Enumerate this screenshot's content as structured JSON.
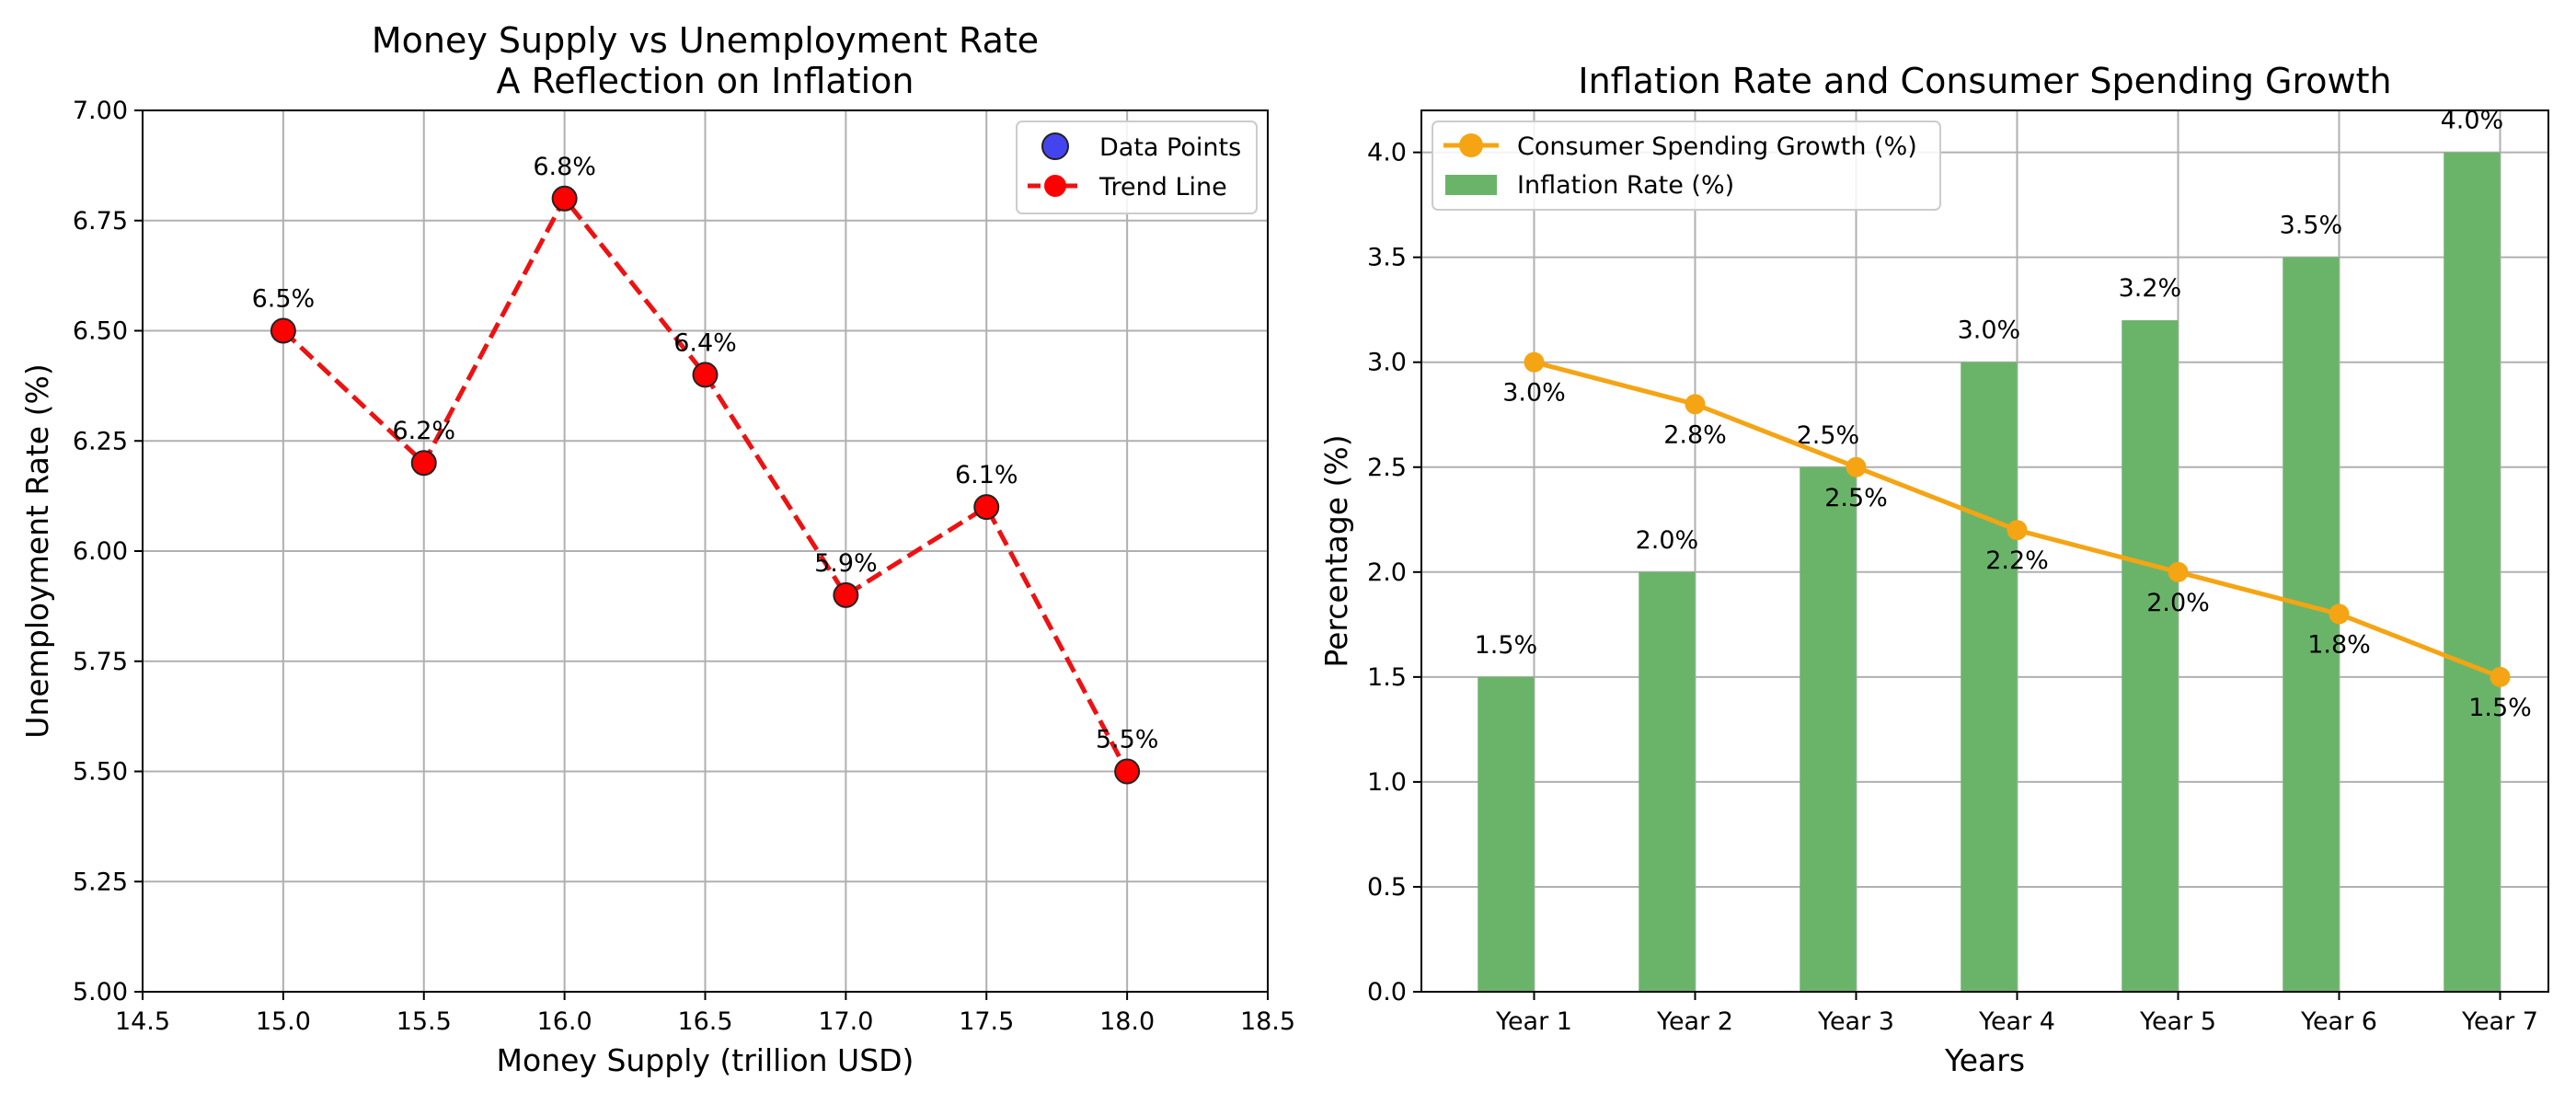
{
  "chart_data": [
    {
      "type": "scatter",
      "title": "Money Supply vs Unemployment Rate\nA Reflection on Inflation",
      "xlabel": "Money Supply (trillion USD)",
      "ylabel": "Unemployment Rate (%)",
      "xlim": [
        14.5,
        18.5
      ],
      "ylim": [
        5.0,
        7.0
      ],
      "xticks": [
        14.5,
        15.0,
        15.5,
        16.0,
        16.5,
        17.0,
        17.5,
        18.0,
        18.5
      ],
      "xtick_labels": [
        "14.5",
        "15.0",
        "15.5",
        "16.0",
        "16.5",
        "17.0",
        "17.5",
        "18.0",
        "18.5"
      ],
      "yticks": [
        5.0,
        5.25,
        5.5,
        5.75,
        6.0,
        6.25,
        6.5,
        6.75,
        7.0
      ],
      "ytick_labels": [
        "5.00",
        "5.25",
        "5.50",
        "5.75",
        "6.00",
        "6.25",
        "6.50",
        "6.75",
        "7.00"
      ],
      "grid": true,
      "legend_position": "top-right",
      "x": [
        15.0,
        15.5,
        16.0,
        16.5,
        17.0,
        17.5,
        18.0
      ],
      "y": [
        6.5,
        6.2,
        6.8,
        6.4,
        5.9,
        6.1,
        5.5
      ],
      "point_labels": [
        "6.5%",
        "6.2%",
        "6.8%",
        "6.4%",
        "5.9%",
        "6.1%",
        "5.5%"
      ],
      "series": [
        {
          "name": "Data Points",
          "kind": "scatter",
          "color": "#4444ee"
        },
        {
          "name": "Trend Line",
          "kind": "line",
          "style": "dashed",
          "color": "#ee1111",
          "marker_color": "#ff0000"
        }
      ]
    },
    {
      "type": "bar",
      "title": "Inflation Rate and Consumer Spending Growth",
      "xlabel": "Years",
      "ylabel": "Percentage (%)",
      "categories": [
        "Year 1",
        "Year 2",
        "Year 3",
        "Year 4",
        "Year 5",
        "Year 6",
        "Year 7"
      ],
      "ylim": [
        0,
        4.2
      ],
      "yticks": [
        0.0,
        0.5,
        1.0,
        1.5,
        2.0,
        2.5,
        3.0,
        3.5,
        4.0
      ],
      "ytick_labels": [
        "0.0",
        "0.5",
        "1.0",
        "1.5",
        "2.0",
        "2.5",
        "3.0",
        "3.5",
        "4.0"
      ],
      "grid": true,
      "legend_position": "top-left",
      "series": [
        {
          "name": "Inflation Rate (%)",
          "kind": "bar",
          "color": "#6ab46a",
          "values": [
            1.5,
            2.0,
            2.5,
            3.0,
            3.2,
            3.5,
            4.0
          ],
          "labels": [
            "1.5%",
            "2.0%",
            "2.5%",
            "3.0%",
            "3.2%",
            "3.5%",
            "4.0%"
          ]
        },
        {
          "name": "Consumer Spending Growth (%)",
          "kind": "line",
          "color": "#f5a413",
          "values": [
            3.0,
            2.8,
            2.5,
            2.2,
            2.0,
            1.8,
            1.5
          ],
          "labels": [
            "3.0%",
            "2.8%",
            "2.5%",
            "2.2%",
            "2.0%",
            "1.8%",
            "1.5%"
          ]
        }
      ]
    }
  ]
}
